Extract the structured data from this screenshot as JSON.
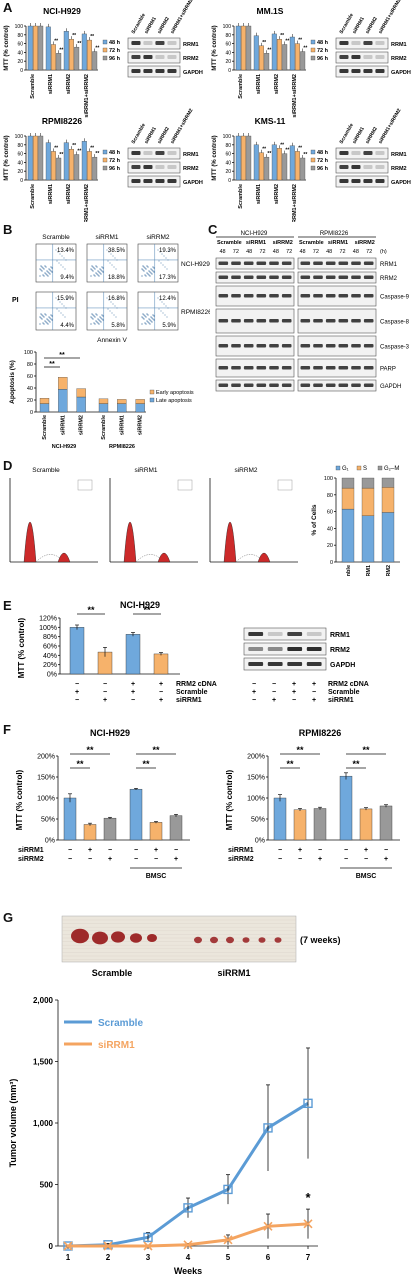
{
  "colors": {
    "blue": "#6fa8dc",
    "orange": "#f6b26b",
    "gray": "#999999",
    "red": "#cc2a2a",
    "scramble_line": "#5b9bd5",
    "sirrm1_line": "#f4a460"
  },
  "panelA": {
    "label": "A",
    "legend": [
      "48 h",
      "72 h",
      "96 h"
    ],
    "categories": [
      "Scramble",
      "siRRM1",
      "siRRM2",
      "siRRM1+siRRM2"
    ],
    "ylabel": "MTT (% control)",
    "yticks": [
      "0",
      "20",
      "40",
      "60",
      "80",
      "100"
    ],
    "sig": "**",
    "blot_cols": [
      "Scramble",
      "siRRM1",
      "siRRM2",
      "siRRM1+siRRM2"
    ],
    "blot_rows": [
      "RRM1",
      "RRM2",
      "GAPDH"
    ],
    "subplots": [
      {
        "title": "NCI-H929"
      },
      {
        "title": "MM.1S"
      },
      {
        "title": "RPMI8226"
      },
      {
        "title": "KMS-11"
      }
    ]
  },
  "chart_data": [
    {
      "type": "bar",
      "title": "NCI-H929",
      "categories": [
        "Scramble",
        "siRRM1",
        "siRRM2",
        "siRRM1+siRRM2"
      ],
      "ylabel": "MTT (% control)",
      "ylim": [
        0,
        100
      ],
      "series": [
        {
          "name": "48 h",
          "values": [
            100,
            98,
            88,
            82
          ]
        },
        {
          "name": "72 h",
          "values": [
            100,
            58,
            70,
            68
          ]
        },
        {
          "name": "96 h",
          "values": [
            100,
            38,
            52,
            42
          ]
        }
      ]
    },
    {
      "type": "bar",
      "title": "MM.1S",
      "categories": [
        "Scramble",
        "siRRM1",
        "siRRM2",
        "siRRM1+siRRM2"
      ],
      "ylabel": "MTT (% control)",
      "ylim": [
        0,
        100
      ],
      "series": [
        {
          "name": "48 h",
          "values": [
            100,
            78,
            82,
            75
          ]
        },
        {
          "name": "72 h",
          "values": [
            100,
            55,
            70,
            60
          ]
        },
        {
          "name": "96 h",
          "values": [
            100,
            38,
            58,
            42
          ]
        }
      ]
    },
    {
      "type": "bar",
      "title": "RPMI8226",
      "categories": [
        "Scramble",
        "siRRM1",
        "siRRM2",
        "siRRM1+siRRM2"
      ],
      "ylabel": "MTT (% control)",
      "ylim": [
        0,
        100
      ],
      "series": [
        {
          "name": "48 h",
          "values": [
            100,
            85,
            85,
            88
          ]
        },
        {
          "name": "72 h",
          "values": [
            100,
            65,
            70,
            65
          ]
        },
        {
          "name": "96 h",
          "values": [
            100,
            50,
            58,
            52
          ]
        }
      ]
    },
    {
      "type": "bar",
      "title": "KMS-11",
      "categories": [
        "Scramble",
        "siRRM1",
        "siRRM2",
        "siRRM1+siRRM2"
      ],
      "ylabel": "MTT (% control)",
      "ylim": [
        0,
        100
      ],
      "series": [
        {
          "name": "48 h",
          "values": [
            100,
            80,
            80,
            78
          ]
        },
        {
          "name": "72 h",
          "values": [
            100,
            62,
            72,
            65
          ]
        },
        {
          "name": "96 h",
          "values": [
            100,
            52,
            60,
            50
          ]
        }
      ]
    },
    {
      "type": "bar",
      "title": "",
      "stacked": true,
      "categories": [
        "Scramble",
        "siRRM1",
        "siRRM2",
        "Scramble",
        "siRRM1",
        "siRRM2"
      ],
      "groups": [
        "NCI-H929",
        "RPMI8226"
      ],
      "ylabel": "Apoptosis (%)",
      "ylim": [
        0,
        100
      ],
      "series": [
        {
          "name": "Late apoptosis",
          "values": [
            14,
            38,
            25,
            14,
            14,
            14
          ]
        },
        {
          "name": "Early apoptosis",
          "values": [
            9,
            20,
            14,
            8,
            7,
            7
          ]
        }
      ]
    },
    {
      "type": "bar",
      "title": "",
      "stacked": true,
      "categories": [
        "Scramble",
        "siRRM1",
        "siRRM2"
      ],
      "ylabel": "% of Cells",
      "ylim": [
        0,
        100
      ],
      "series": [
        {
          "name": "G1",
          "values": [
            63,
            55,
            59
          ]
        },
        {
          "name": "S",
          "values": [
            25,
            33,
            30
          ]
        },
        {
          "name": "G2-M",
          "values": [
            12,
            12,
            11
          ]
        }
      ]
    },
    {
      "type": "bar",
      "title": "NCI-H929",
      "ylabel": "MTT (% control)",
      "ylim": [
        0,
        120
      ],
      "values": [
        100,
        47,
        85,
        43
      ],
      "errors": [
        5,
        10,
        4,
        3
      ]
    },
    {
      "type": "bar",
      "title": "NCI-H929",
      "ylabel": "MTT (% control)",
      "ylim": [
        0,
        200
      ],
      "values": [
        100,
        37,
        52,
        121,
        42,
        58
      ],
      "errors": [
        10,
        3,
        2,
        2,
        2,
        3
      ]
    },
    {
      "type": "bar",
      "title": "RPMI8226",
      "ylabel": "MTT (% control)",
      "ylim": [
        0,
        200
      ],
      "values": [
        100,
        72,
        75,
        152,
        74,
        81
      ],
      "errors": [
        8,
        3,
        3,
        8,
        3,
        3
      ]
    },
    {
      "type": "line",
      "title": "",
      "xlabel": "Weeks",
      "ylabel": "Tumor volume (mm³)",
      "ylim": [
        0,
        2000
      ],
      "x": [
        1,
        2,
        3,
        4,
        5,
        6,
        7
      ],
      "series": [
        {
          "name": "Scramble",
          "values": [
            0,
            10,
            70,
            310,
            460,
            960,
            1160
          ],
          "errors": [
            0,
            10,
            40,
            80,
            120,
            350,
            450
          ]
        },
        {
          "name": "siRRM1",
          "values": [
            0,
            0,
            0,
            10,
            50,
            160,
            180
          ],
          "errors": [
            0,
            0,
            0,
            10,
            40,
            100,
            120
          ]
        }
      ]
    }
  ],
  "panelB": {
    "label": "B",
    "cols": [
      "Scramble",
      "siRRM1",
      "siRRM2"
    ],
    "rows": [
      "NCI-H929",
      "RPMI8226"
    ],
    "quadrants": [
      [
        {
          "ur": "13.4%",
          "lr": "9.4%"
        },
        {
          "ur": "38.5%",
          "lr": "18.8%"
        },
        {
          "ur": "19.3%",
          "lr": "17.3%"
        }
      ],
      [
        {
          "ur": "15.9%",
          "lr": "4.4%"
        },
        {
          "ur": "16.8%",
          "lr": "5.8%"
        },
        {
          "ur": "12.4%",
          "lr": "5.9%"
        }
      ]
    ],
    "yaxis": "PI",
    "xaxis": "Annexin V",
    "bar_ylabel": "Apoptosis (%)",
    "bar_yticks": [
      "0",
      "20",
      "40",
      "60",
      "80",
      "100"
    ],
    "bar_cats": [
      "Scramble",
      "siRRM1",
      "siRRM2",
      "Scramble",
      "siRRM1",
      "siRRM2"
    ],
    "groups": [
      "NCI-H929",
      "RPMI8226"
    ],
    "legend": [
      "Early apoptosis",
      "Late apoptosis"
    ],
    "sig": "**"
  },
  "panelC": {
    "label": "C",
    "groups": [
      "NCI-H929",
      "RPMI8226"
    ],
    "lanes": [
      "Scramble",
      "siRRM1",
      "siRRM2",
      "Scramble",
      "siRRM1",
      "siRRM2"
    ],
    "times": [
      "48",
      "72",
      "48",
      "72",
      "48",
      "72",
      "48",
      "72",
      "48",
      "72",
      "48",
      "72"
    ],
    "unit": "(h)",
    "rows": [
      "RRM1",
      "RRM2",
      "Caspase-9",
      "Caspase-8",
      "Caspase-3",
      "PARP",
      "GAPDH"
    ]
  },
  "panelD": {
    "label": "D",
    "hist_titles": [
      "Scramble",
      "siRRM1",
      "siRRM2"
    ],
    "legend": [
      "G₁",
      "S",
      "G₂–M"
    ],
    "ylabel": "% of Cells",
    "yticks": [
      "0",
      "20",
      "40",
      "60",
      "80",
      "100"
    ],
    "cats": [
      "Scramble",
      "siRRM1",
      "siRRM2"
    ]
  },
  "panelE": {
    "label": "E",
    "title": "NCI-H929",
    "ylabel": "MTT (% control)",
    "yticks": [
      "0%",
      "20%",
      "40%",
      "60%",
      "80%",
      "100%",
      "120%"
    ],
    "rows": [
      {
        "name": "RRM2 cDNA",
        "vals": [
          "−",
          "−",
          "+",
          "+"
        ]
      },
      {
        "name": "Scramble",
        "vals": [
          "+",
          "−",
          "+",
          "−"
        ]
      },
      {
        "name": "siRRM1",
        "vals": [
          "−",
          "+",
          "−",
          "+"
        ]
      }
    ],
    "blot_rows": [
      "RRM1",
      "RRM2",
      "GAPDH"
    ],
    "sig": "**"
  },
  "panelF": {
    "label": "F",
    "titles": [
      "NCI-H929",
      "RPMI8226"
    ],
    "ylabel": "MTT (% control)",
    "yticks": [
      "0%",
      "50%",
      "100%",
      "150%",
      "200%"
    ],
    "rows": [
      {
        "name": "siRRM1",
        "vals": [
          "−",
          "+",
          "−",
          "−",
          "+",
          "−"
        ]
      },
      {
        "name": "siRRM2",
        "vals": [
          "−",
          "−",
          "+",
          "−",
          "−",
          "+"
        ]
      }
    ],
    "bmsc": "BMSC",
    "sig": "**"
  },
  "panelG": {
    "label": "G",
    "photo_caption": "(7 weeks)",
    "photo_labels": [
      "Scramble",
      "siRRM1"
    ],
    "ylabel": "Tumor volume (mm³)",
    "xlabel": "Weeks",
    "yticks": [
      "0",
      "500",
      "1,000",
      "1,500",
      "2,000"
    ],
    "xticks": [
      "1",
      "2",
      "3",
      "4",
      "5",
      "6",
      "7"
    ],
    "legend": [
      "Scramble",
      "siRRM1"
    ],
    "sig": "*"
  }
}
